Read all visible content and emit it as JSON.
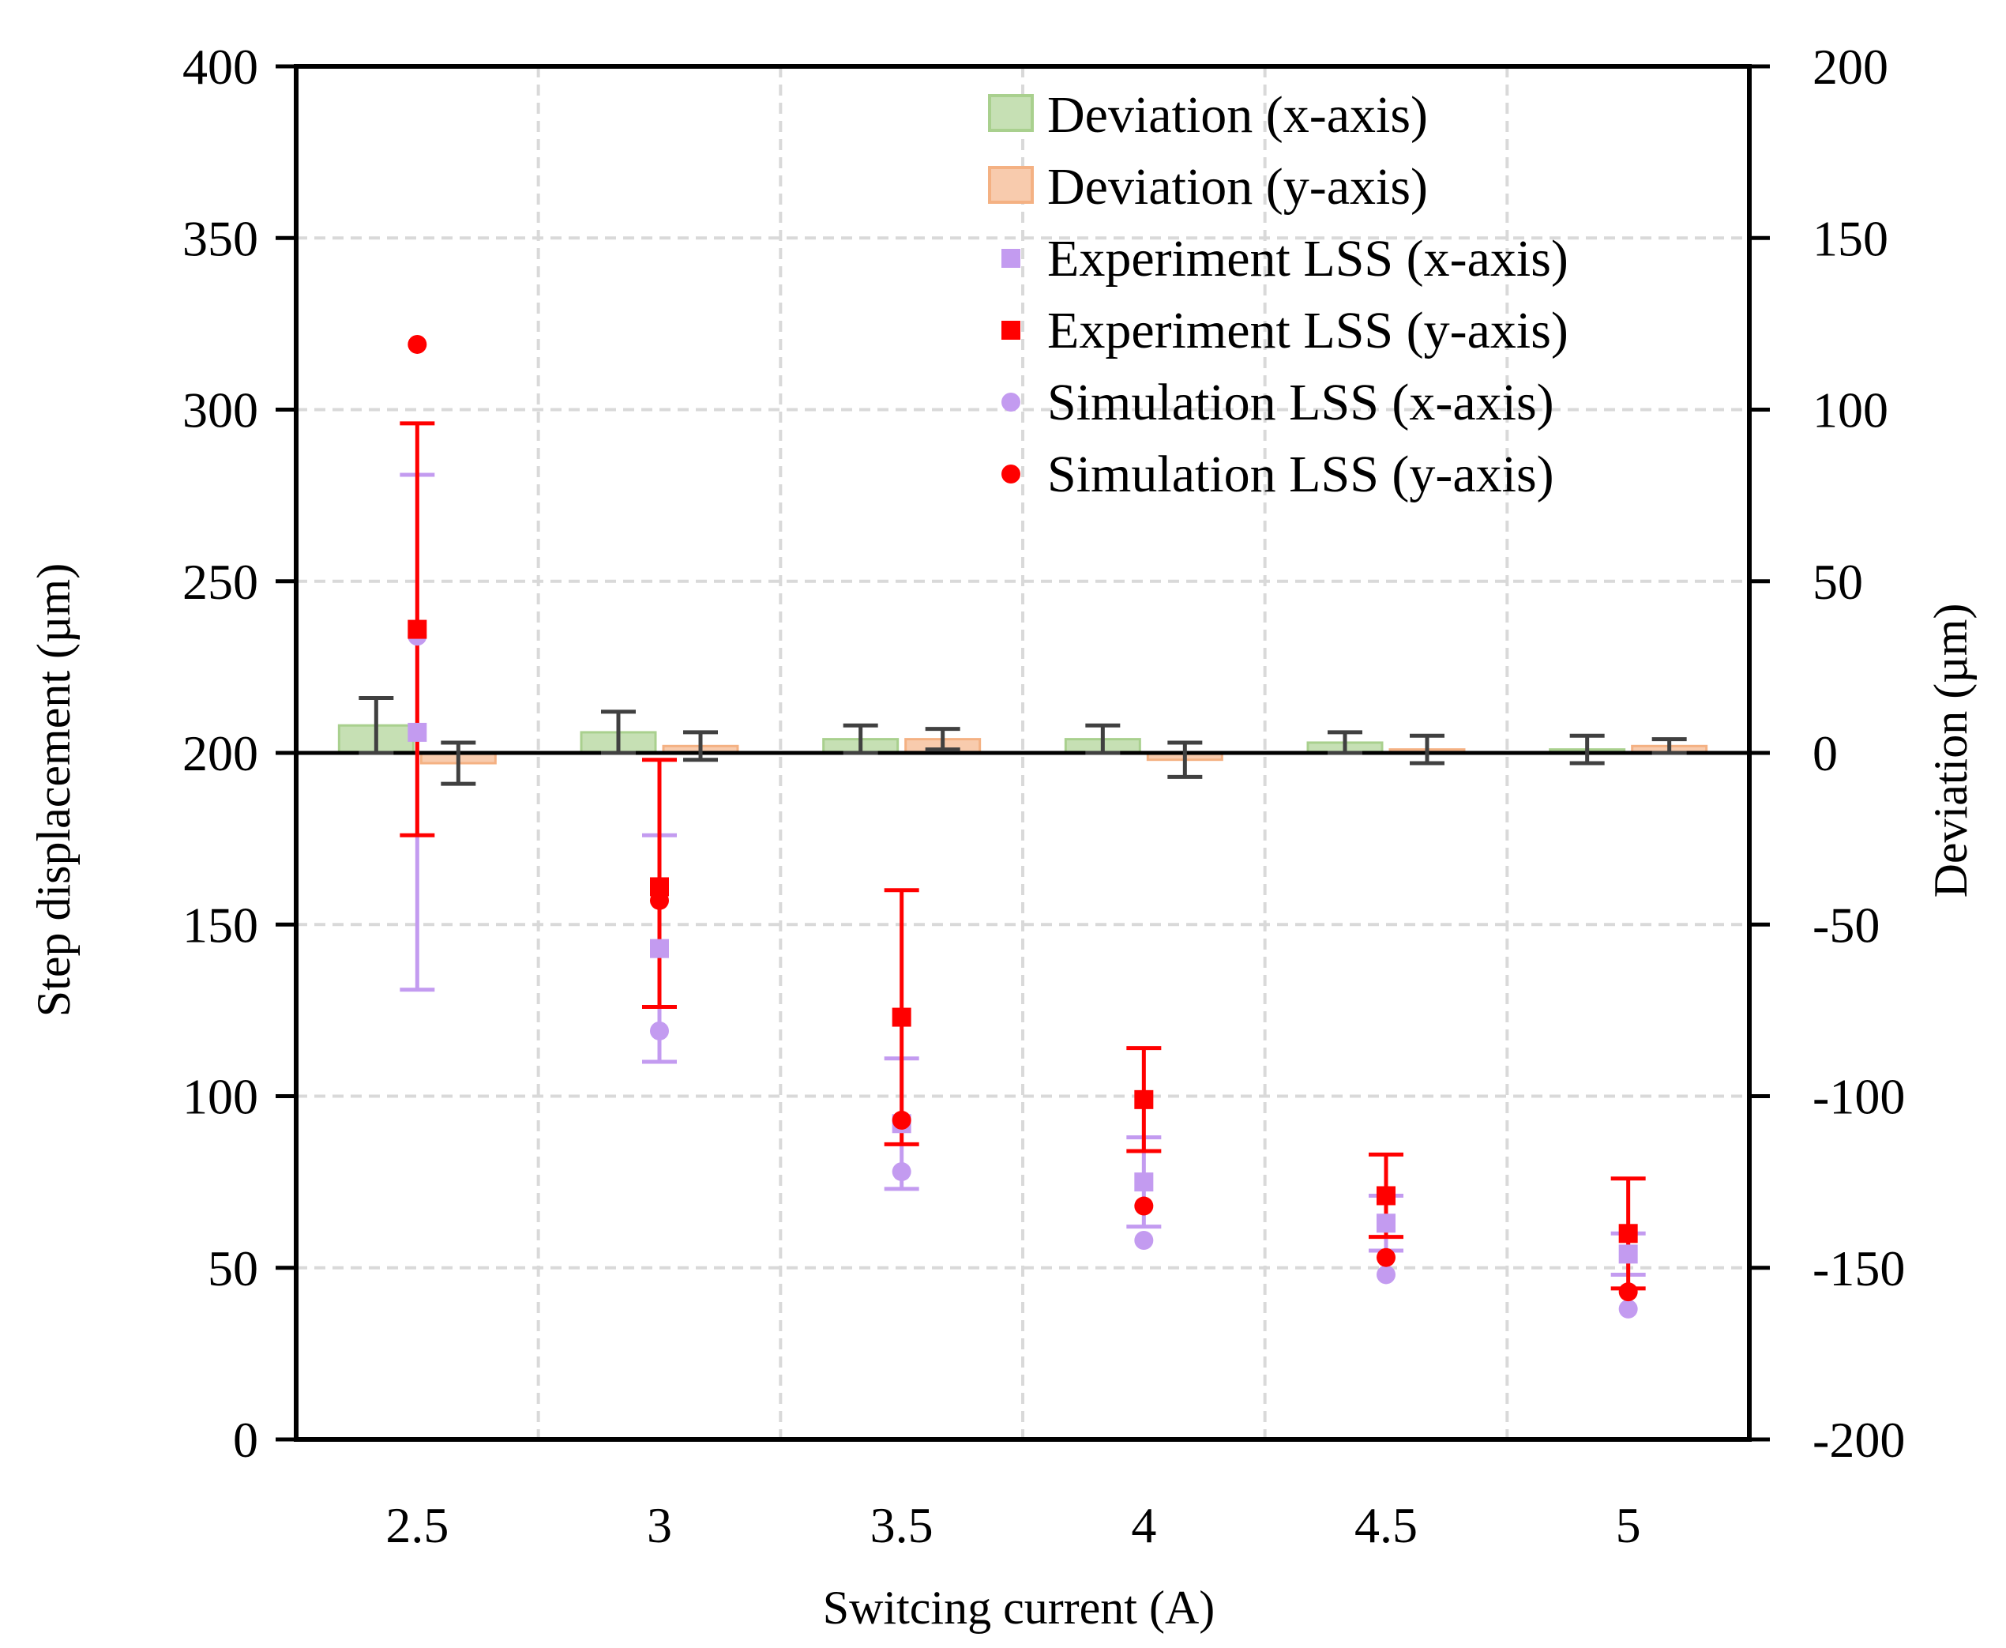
{
  "chart_data": {
    "type": "bar+scatter",
    "xlabel": "Switcing current (A)",
    "ylabel_left": "Step displacement (µm)",
    "ylabel_right": "Deviation (µm)",
    "ylim_left": [
      0,
      400
    ],
    "ylim_right": [
      -200,
      200
    ],
    "yticks_left": [
      "0",
      "50",
      "100",
      "150",
      "200",
      "250",
      "300",
      "350",
      "400"
    ],
    "yticks_right": [
      "-200",
      "-150",
      "-100",
      "-50",
      "0",
      "50",
      "100",
      "150",
      "200"
    ],
    "categories": [
      "2.5",
      "3",
      "3.5",
      "4",
      "4.5",
      "5"
    ],
    "grid": true,
    "legend_position": "top-right",
    "colors": {
      "deviation_x_fill": "#c6e0b4",
      "deviation_x_stroke": "#a9d08e",
      "deviation_y_fill": "#f8cbad",
      "deviation_y_stroke": "#f4b183",
      "exp_x": "#c39bf0",
      "exp_y": "#ff0000",
      "sim_x": "#c39bf0",
      "sim_y": "#ff0000",
      "error_gray": "#404040",
      "grid": "#d9d9d9"
    },
    "legend": [
      {
        "label": "Deviation (x-axis)",
        "kind": "bar",
        "key": "deviation_x"
      },
      {
        "label": "Deviation (y-axis)",
        "kind": "bar",
        "key": "deviation_y"
      },
      {
        "label": "Experiment LSS (x-axis)",
        "kind": "square",
        "key": "exp_x"
      },
      {
        "label": "Experiment LSS (y-axis)",
        "kind": "square",
        "key": "exp_y"
      },
      {
        "label": "Simulation LSS (x-axis)",
        "kind": "circle",
        "key": "sim_x"
      },
      {
        "label": "Simulation LSS (y-axis)",
        "kind": "circle",
        "key": "sim_y"
      }
    ],
    "deviation_x": {
      "values": [
        8,
        6,
        4,
        4,
        3,
        1
      ],
      "err_low": [
        8,
        6,
        4,
        4,
        3,
        4
      ],
      "err_high": [
        8,
        6,
        4,
        4,
        3,
        4
      ]
    },
    "deviation_y": {
      "values": [
        -3,
        2,
        4,
        -2,
        1,
        2
      ],
      "err_low": [
        6,
        4,
        3,
        5,
        4,
        2
      ],
      "err_high": [
        6,
        4,
        3,
        5,
        4,
        2
      ]
    },
    "exp_x": {
      "values": [
        206,
        143,
        92,
        75,
        63,
        54
      ],
      "err_low": [
        75,
        33,
        19,
        13,
        8,
        6
      ],
      "err_high": [
        75,
        33,
        19,
        13,
        8,
        6
      ]
    },
    "exp_y": {
      "values": [
        236,
        161,
        123,
        99,
        71,
        60
      ],
      "err_low": [
        60,
        35,
        37,
        15,
        12,
        16
      ],
      "err_high": [
        60,
        37,
        37,
        15,
        12,
        16
      ]
    },
    "sim_x": {
      "values": [
        234,
        119,
        78,
        58,
        48,
        38
      ]
    },
    "sim_y": {
      "values": [
        319,
        157,
        93,
        68,
        53,
        43
      ]
    }
  }
}
